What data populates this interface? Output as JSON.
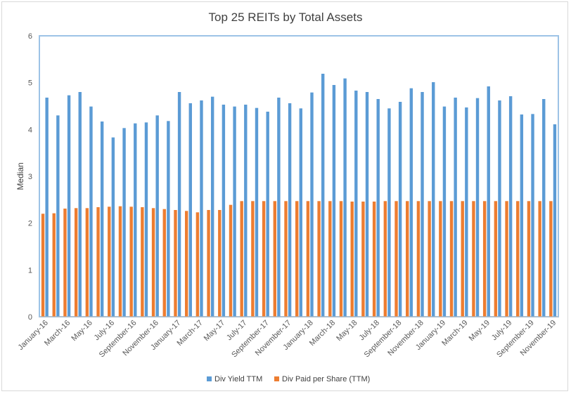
{
  "chart_data": {
    "type": "bar",
    "title": "Top 25 REITs by Total Assets",
    "xlabel": "",
    "ylabel": "Median",
    "ylim": [
      0,
      6
    ],
    "yticks": [
      0,
      1,
      2,
      3,
      4,
      5,
      6
    ],
    "grid": false,
    "legend_position": "bottom",
    "x_tick_labels": [
      "January-16",
      "March-16",
      "May-16",
      "July-16",
      "September-16",
      "November-16",
      "January-17",
      "March-17",
      "May-17",
      "July-17",
      "September-17",
      "November-17",
      "January-18",
      "March-18",
      "May-18",
      "July-18",
      "September-18",
      "November-18",
      "January-19",
      "March-19",
      "May-19",
      "July-19",
      "September-19",
      "November-19"
    ],
    "categories": [
      "January-16",
      "February-16",
      "March-16",
      "April-16",
      "May-16",
      "June-16",
      "July-16",
      "August-16",
      "September-16",
      "October-16",
      "November-16",
      "December-16",
      "January-17",
      "February-17",
      "March-17",
      "April-17",
      "May-17",
      "June-17",
      "July-17",
      "August-17",
      "September-17",
      "October-17",
      "November-17",
      "December-17",
      "January-18",
      "February-18",
      "March-18",
      "April-18",
      "May-18",
      "June-18",
      "July-18",
      "August-18",
      "September-18",
      "October-18",
      "November-18",
      "December-18",
      "January-19",
      "February-19",
      "March-19",
      "April-19",
      "May-19",
      "June-19",
      "July-19",
      "August-19",
      "September-19",
      "October-19",
      "November-19"
    ],
    "series": [
      {
        "name": "Div Yield TTM",
        "color": "#5b9bd5",
        "values": [
          4.68,
          4.3,
          4.73,
          4.8,
          4.49,
          4.17,
          3.83,
          4.03,
          4.13,
          4.15,
          4.3,
          4.18,
          4.8,
          4.56,
          4.62,
          4.7,
          4.53,
          4.49,
          4.53,
          4.46,
          4.38,
          4.68,
          4.56,
          4.45,
          4.79,
          5.19,
          4.95,
          5.09,
          4.83,
          4.8,
          4.65,
          4.45,
          4.59,
          4.88,
          4.8,
          5.01,
          4.49,
          4.68,
          4.47,
          4.67,
          4.92,
          4.62,
          4.71,
          4.32,
          4.33,
          4.65,
          4.11
        ]
      },
      {
        "name": "Div Paid per Share (TTM)",
        "color": "#ed7d31",
        "values": [
          2.2,
          2.21,
          2.31,
          2.32,
          2.32,
          2.34,
          2.35,
          2.36,
          2.35,
          2.34,
          2.32,
          2.3,
          2.28,
          2.26,
          2.23,
          2.28,
          2.28,
          2.39,
          2.47,
          2.47,
          2.47,
          2.47,
          2.47,
          2.47,
          2.47,
          2.47,
          2.47,
          2.47,
          2.46,
          2.46,
          2.46,
          2.47,
          2.47,
          2.47,
          2.47,
          2.47,
          2.47,
          2.47,
          2.47,
          2.47,
          2.47,
          2.47,
          2.47,
          2.47,
          2.47,
          2.47,
          2.47
        ]
      }
    ]
  }
}
